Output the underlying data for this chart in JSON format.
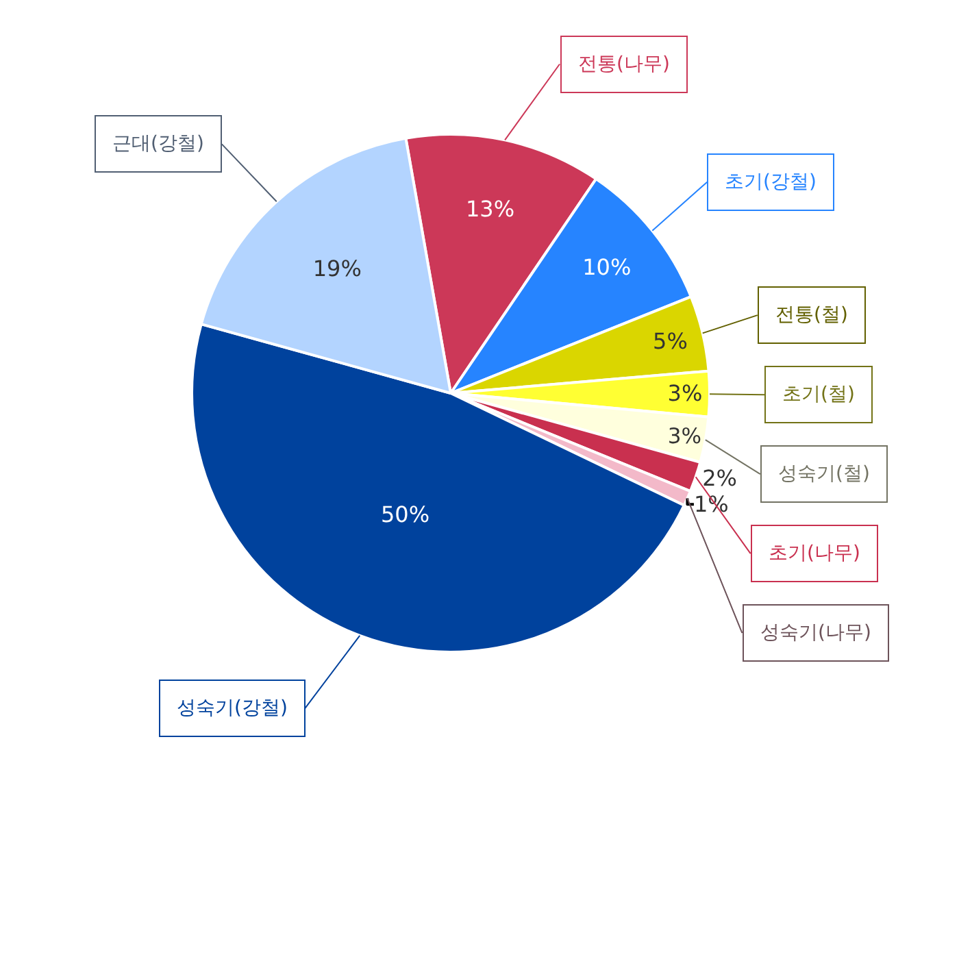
{
  "chart_data": {
    "type": "pie",
    "categories": [
      "전통(나무)",
      "초기(강철)",
      "전통(철)",
      "초기(철)",
      "성숙기(철)",
      "초기(나무)",
      "성숙기(나무)",
      "성숙기(강철)",
      "근대(강철)"
    ],
    "values": [
      13,
      10,
      5,
      3,
      3,
      2,
      1,
      50,
      19
    ],
    "colors": [
      "#cc3858",
      "#2684ff",
      "#dad600",
      "#ffff33",
      "#ffffdd",
      "#c9304f",
      "#f3b9c9",
      "#00429d",
      "#b3d4ff"
    ],
    "value_labels": [
      "13%",
      "10%",
      "5%",
      "3%",
      "3%",
      "2%",
      "1%",
      "50%",
      "19%"
    ]
  }
}
